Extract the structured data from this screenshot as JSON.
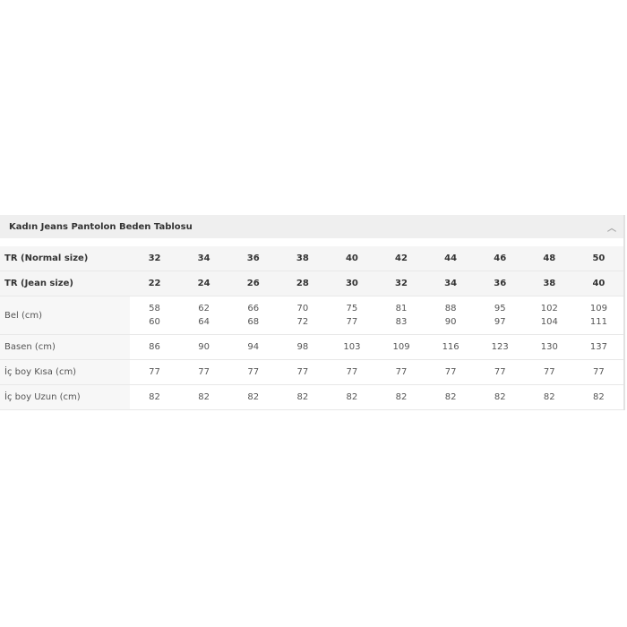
{
  "title": "Kadın Jeans Pantolon Beden Tablosu",
  "collapse_icon": "chevron-up-icon",
  "rows": [
    {
      "label": "TR (Normal size)",
      "values": [
        "32",
        "34",
        "36",
        "38",
        "40",
        "42",
        "44",
        "46",
        "48",
        "50"
      ]
    },
    {
      "label": "TR (Jean size)",
      "values": [
        "22",
        "24",
        "26",
        "28",
        "30",
        "32",
        "34",
        "36",
        "38",
        "40"
      ]
    },
    {
      "label": "Bel (cm)",
      "values": [
        [
          "58",
          "60"
        ],
        [
          "62",
          "64"
        ],
        [
          "66",
          "68"
        ],
        [
          "70",
          "72"
        ],
        [
          "75",
          "77"
        ],
        [
          "81",
          "83"
        ],
        [
          "88",
          "90"
        ],
        [
          "95",
          "97"
        ],
        [
          "102",
          "104"
        ],
        [
          "109",
          "111"
        ]
      ]
    },
    {
      "label": "Basen (cm)",
      "values": [
        "86",
        "90",
        "94",
        "98",
        "103",
        "109",
        "116",
        "123",
        "130",
        "137"
      ]
    },
    {
      "label": "İç boy Kısa (cm)",
      "values": [
        "77",
        "77",
        "77",
        "77",
        "77",
        "77",
        "77",
        "77",
        "77",
        "77"
      ]
    },
    {
      "label": "İç boy Uzun (cm)",
      "values": [
        "82",
        "82",
        "82",
        "82",
        "82",
        "82",
        "82",
        "82",
        "82",
        "82"
      ]
    }
  ]
}
